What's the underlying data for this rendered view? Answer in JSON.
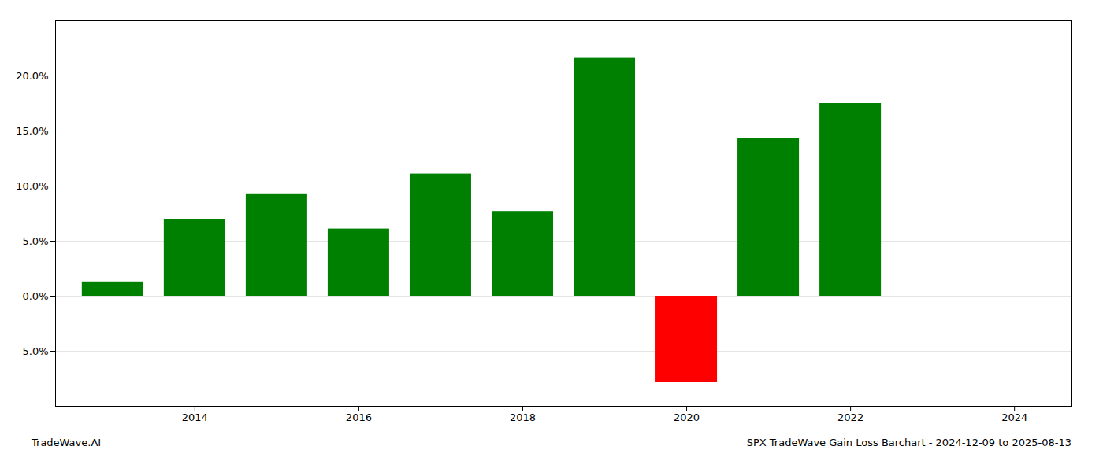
{
  "chart_data": {
    "type": "bar",
    "x": [
      2013,
      2014,
      2015,
      2016,
      2017,
      2018,
      2019,
      2020,
      2021,
      2022,
      2023
    ],
    "values": [
      1.3,
      7.0,
      9.3,
      6.1,
      11.1,
      7.7,
      21.6,
      -7.8,
      14.3,
      17.5,
      0.0
    ],
    "colors": [
      "#008000",
      "#008000",
      "#008000",
      "#008000",
      "#008000",
      "#008000",
      "#008000",
      "#ff0000",
      "#008000",
      "#008000",
      "#008000"
    ],
    "xlim": [
      2012.3,
      2024.7
    ],
    "xticks": [
      2014,
      2016,
      2018,
      2020,
      2022,
      2024
    ],
    "ylim": [
      -10,
      25
    ],
    "yticks": [
      {
        "value": -5.0,
        "label": "-5.0%"
      },
      {
        "value": 0.0,
        "label": "0.0%"
      },
      {
        "value": 5.0,
        "label": "5.0%"
      },
      {
        "value": 10.0,
        "label": "10.0%"
      },
      {
        "value": 15.0,
        "label": "15.0%"
      },
      {
        "value": 20.0,
        "label": "20.0%"
      }
    ],
    "grid": true,
    "annotations": [
      "TradeWave.AI",
      "SPX TradeWave Gain Loss Barchart - 2024-12-09 to 2025-08-13"
    ]
  }
}
